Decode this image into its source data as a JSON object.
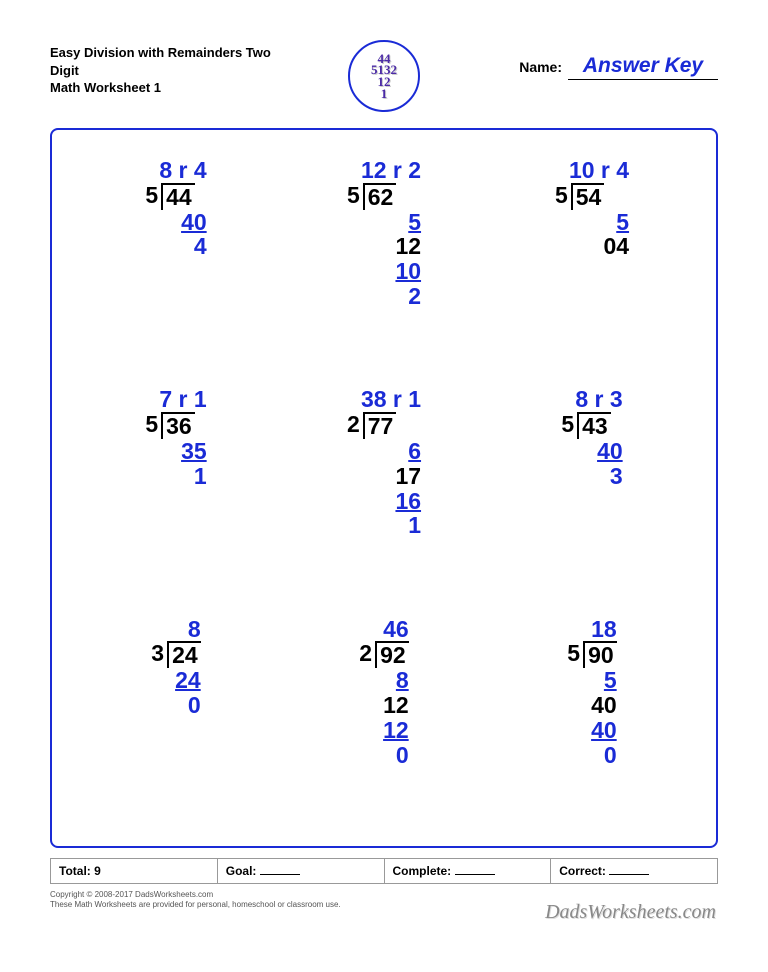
{
  "colors": {
    "answer_blue": "#1a2bd6",
    "text_black": "#000000",
    "border_gray": "#999999",
    "logo_purple": "#4b2aa6",
    "background": "#ffffff"
  },
  "typography": {
    "problem_fontsize": 23,
    "title_fontsize": 13,
    "answer_key_fontsize": 21,
    "footer_fontsize": 12
  },
  "header": {
    "title_line1": "Easy Division with Remainders Two Digit",
    "title_line2": "Math Worksheet 1",
    "name_label": "Name:",
    "answer_key": "Answer Key",
    "logo_text": "44\n5132\n12\n1"
  },
  "problems": [
    {
      "divisor": "5",
      "dividend": "44",
      "quotient": "8 r 4",
      "steps": [
        {
          "t": "40",
          "u": true
        },
        {
          "t": "4"
        }
      ]
    },
    {
      "divisor": "5",
      "dividend": "62",
      "quotient": "12 r 2",
      "steps": [
        {
          "t": "5",
          "u": true
        },
        {
          "t": "12",
          "c": "black"
        },
        {
          "t": "10",
          "u": true
        },
        {
          "t": "2"
        }
      ]
    },
    {
      "divisor": "5",
      "dividend": "54",
      "quotient": "10 r 4",
      "steps": [
        {
          "t": "5",
          "u": true
        },
        {
          "t": "04",
          "c": "black"
        }
      ]
    },
    {
      "divisor": "5",
      "dividend": "36",
      "quotient": "7 r 1",
      "steps": [
        {
          "t": "35",
          "u": true
        },
        {
          "t": "1"
        }
      ]
    },
    {
      "divisor": "2",
      "dividend": "77",
      "quotient": "38 r 1",
      "steps": [
        {
          "t": "6",
          "u": true
        },
        {
          "t": "17",
          "c": "black"
        },
        {
          "t": "16",
          "u": true
        },
        {
          "t": "1"
        }
      ]
    },
    {
      "divisor": "5",
      "dividend": "43",
      "quotient": "8 r 3",
      "steps": [
        {
          "t": "40",
          "u": true
        },
        {
          "t": "3"
        }
      ]
    },
    {
      "divisor": "3",
      "dividend": "24",
      "quotient": "8",
      "steps": [
        {
          "t": "24",
          "u": true
        },
        {
          "t": "0"
        }
      ]
    },
    {
      "divisor": "2",
      "dividend": "92",
      "quotient": "46",
      "steps": [
        {
          "t": "8",
          "u": true
        },
        {
          "t": "12",
          "c": "black"
        },
        {
          "t": "12",
          "u": true
        },
        {
          "t": "0"
        }
      ]
    },
    {
      "divisor": "5",
      "dividend": "90",
      "quotient": "18",
      "steps": [
        {
          "t": "5",
          "u": true
        },
        {
          "t": "40",
          "c": "black"
        },
        {
          "t": "40",
          "u": true
        },
        {
          "t": "0"
        }
      ]
    }
  ],
  "footer": {
    "total_label": "Total: 9",
    "goal_label": "Goal:",
    "complete_label": "Complete:",
    "correct_label": "Correct:"
  },
  "copyright": {
    "line1": "Copyright © 2008-2017 DadsWorksheets.com",
    "line2": "These Math Worksheets are provided for personal, homeschool or classroom use."
  },
  "brand": "DadsWorksheets.com"
}
